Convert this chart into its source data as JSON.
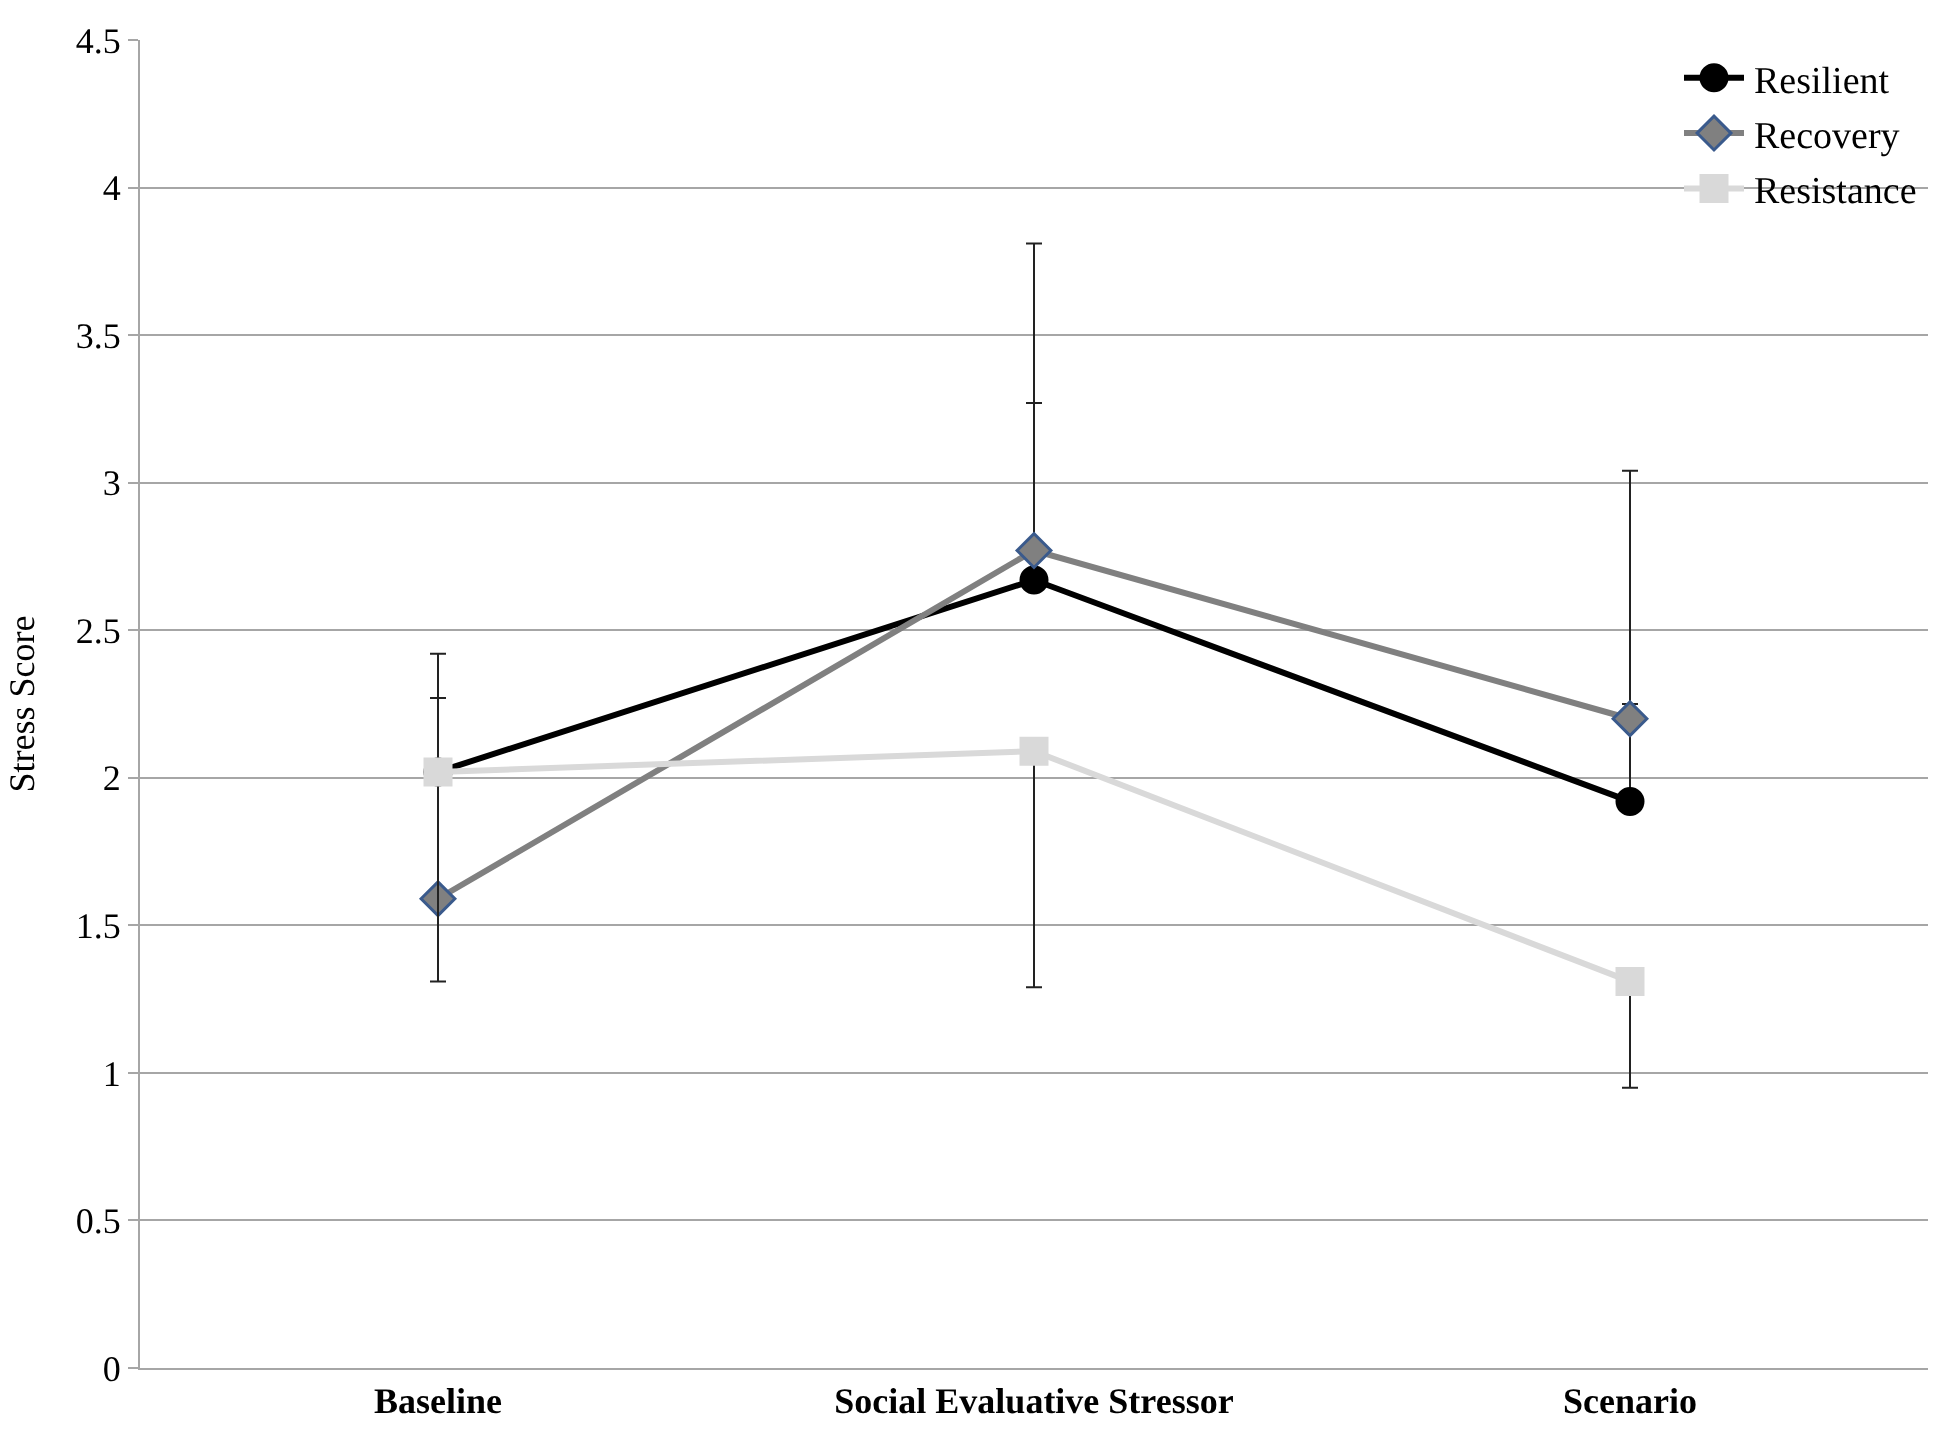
{
  "chart_data": {
    "type": "line",
    "ylabel": "Stress Score",
    "categories": [
      "Baseline",
      "Social Evaluative Stressor",
      "Scenario"
    ],
    "series": [
      {
        "name": "Resilient",
        "color": "#000000",
        "marker": "circle",
        "values": [
          2.02,
          2.67,
          1.92
        ],
        "errors": [
          [
            2.02,
            2.42
          ],
          [
            2.67,
            3.27
          ],
          [
            1.92,
            2.25
          ]
        ]
      },
      {
        "name": "Recovery",
        "color": "#808080",
        "marker": "diamond",
        "values": [
          1.59,
          2.77,
          2.2
        ],
        "errors": [
          [
            1.59,
            2.27
          ],
          [
            2.77,
            3.81
          ],
          [
            2.2,
            3.04
          ]
        ]
      },
      {
        "name": "Resistance",
        "color": "#d9d9d9",
        "marker": "square",
        "values": [
          2.02,
          2.09,
          1.31
        ],
        "errors": [
          [
            1.31,
            2.02
          ],
          [
            1.29,
            2.09
          ],
          [
            0.95,
            1.31
          ]
        ]
      }
    ],
    "ylim": [
      0,
      4.5
    ],
    "yticks": [
      0,
      0.5,
      1,
      1.5,
      2,
      2.5,
      3,
      3.5,
      4,
      4.5
    ],
    "grid": "y",
    "legend": "top right"
  }
}
